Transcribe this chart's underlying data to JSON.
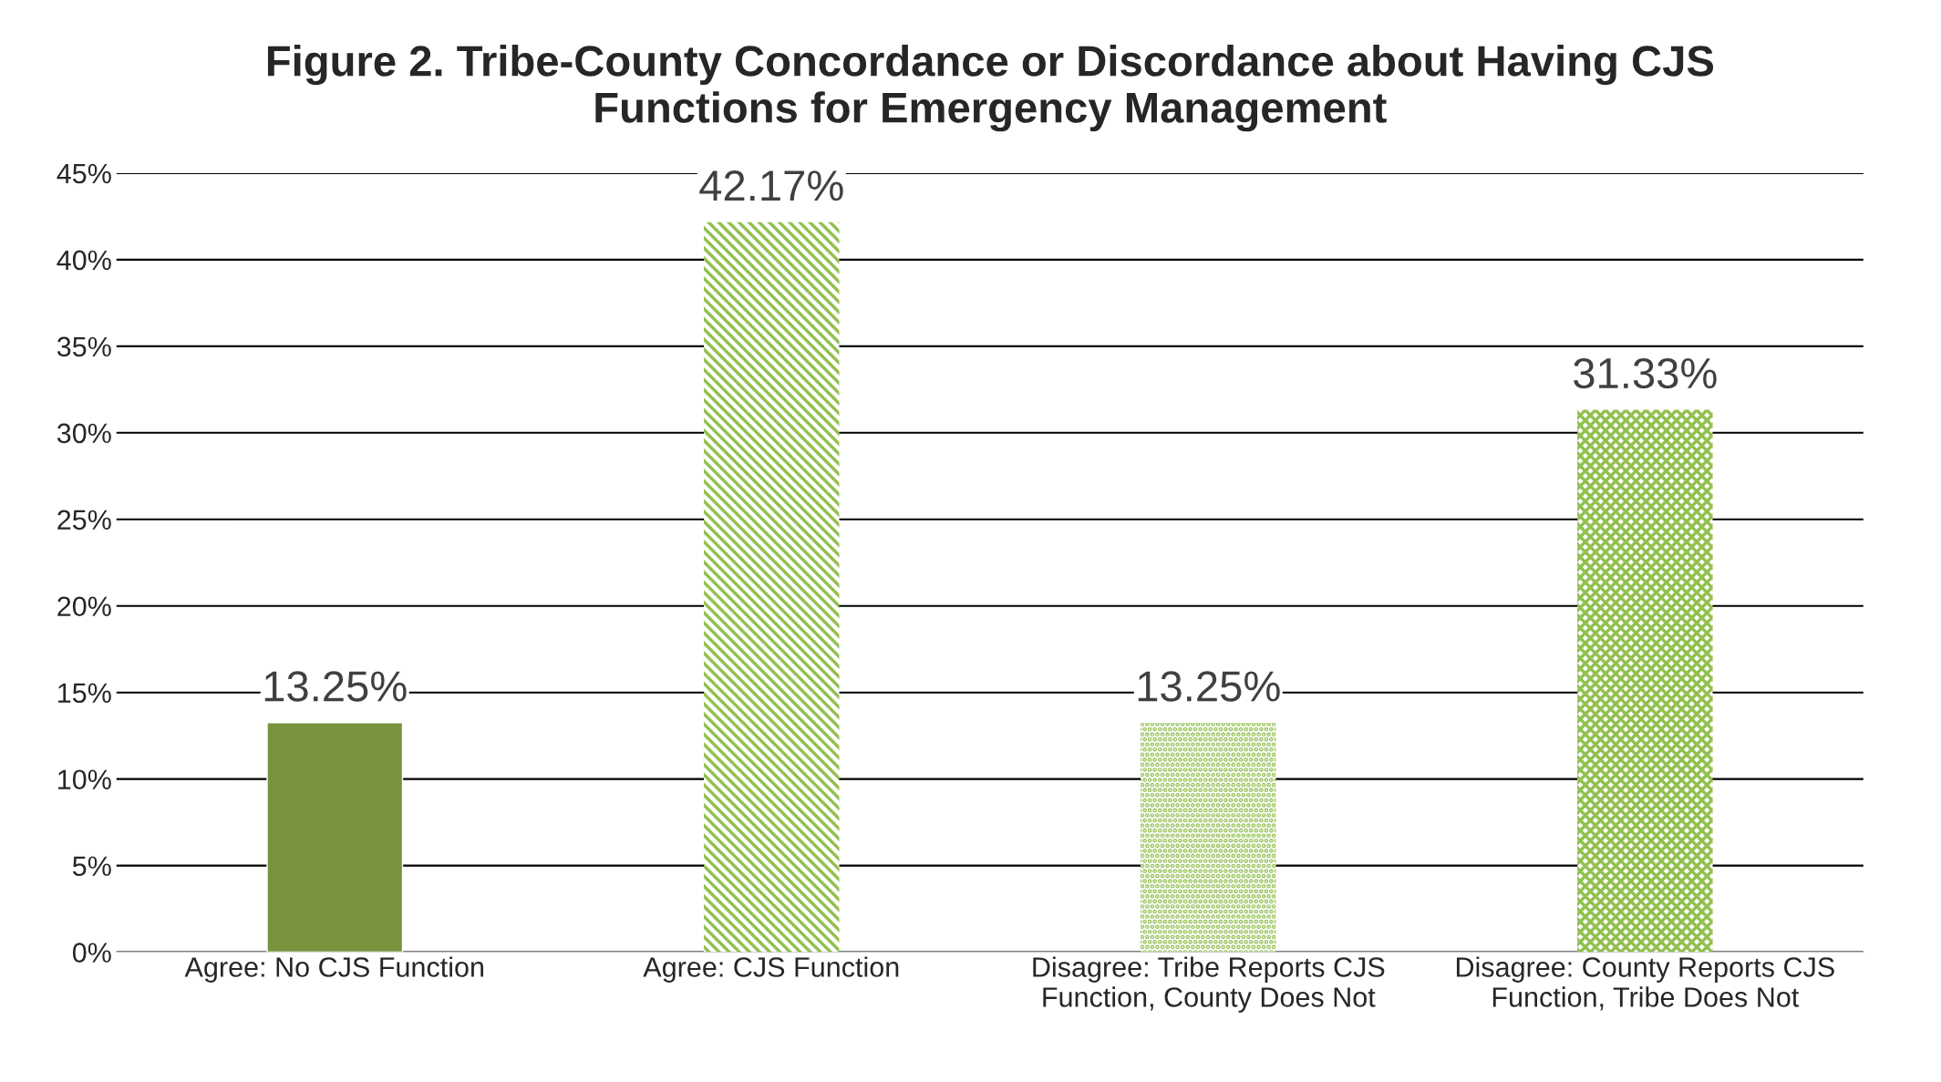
{
  "chart_data": {
    "type": "bar",
    "title": "Figure 2. Tribe-County Concordance or Discordance about Having CJS\nFunctions for Emergency Management",
    "categories": [
      "Agree: No CJS Function",
      "Agree: CJS Function",
      "Disagree: Tribe Reports CJS\nFunction, County Does Not",
      "Disagree: County Reports CJS\nFunction, Tribe Does Not"
    ],
    "values": [
      13.25,
      42.17,
      13.25,
      31.33
    ],
    "value_labels": [
      "13.25%",
      "42.17%",
      "13.25%",
      "31.33%"
    ],
    "colors": [
      "#77933c",
      "#92c050",
      "#92c050",
      "#92c050"
    ],
    "ylim": [
      0,
      45
    ],
    "yticks": [
      {
        "value": 0,
        "label": "0%"
      },
      {
        "value": 5,
        "label": "5%"
      },
      {
        "value": 10,
        "label": "10%"
      },
      {
        "value": 15,
        "label": "15%"
      },
      {
        "value": 20,
        "label": "20%"
      },
      {
        "value": 25,
        "label": "25%"
      },
      {
        "value": 30,
        "label": "30%"
      },
      {
        "value": 35,
        "label": "35%"
      },
      {
        "value": 40,
        "label": "40%"
      },
      {
        "value": 45,
        "label": "45%"
      }
    ],
    "grid": "y"
  }
}
